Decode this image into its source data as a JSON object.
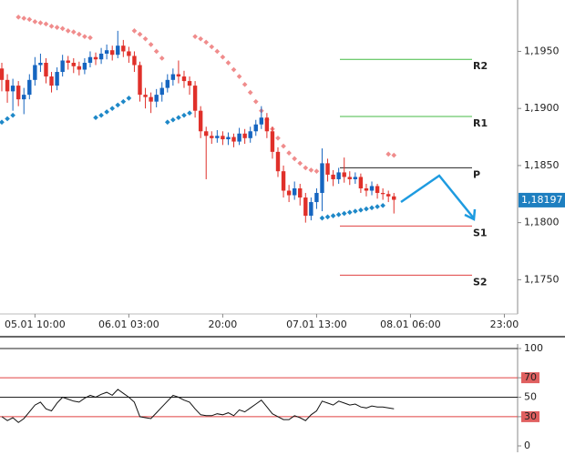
{
  "chart_data": [
    {
      "type": "candlestick",
      "categories": [
        null,
        null,
        null,
        null,
        null,
        null,
        "05.01 10:00",
        null,
        null,
        null,
        null,
        null,
        null,
        null,
        null,
        null,
        null,
        null,
        null,
        null,
        null,
        null,
        null,
        "06.01 03:00",
        null,
        null,
        null,
        null,
        null,
        null,
        null,
        null,
        null,
        null,
        null,
        null,
        null,
        null,
        null,
        null,
        "20:00",
        null,
        null,
        null,
        null,
        null,
        null,
        null,
        null,
        null,
        null,
        null,
        null,
        null,
        null,
        null,
        null,
        "07.01 13:00",
        null,
        null,
        null,
        null,
        null,
        null,
        null,
        null,
        null,
        null,
        null,
        null,
        null,
        null,
        null,
        null,
        "08.01 06:00",
        null,
        null,
        null,
        null,
        null,
        null,
        null,
        null,
        null,
        null,
        null,
        null,
        null,
        null,
        null,
        null,
        "23:00",
        null
      ],
      "open": [
        1.1935,
        1.1925,
        1.1915,
        1.192,
        1.1908,
        1.1912,
        1.1925,
        1.1938,
        1.194,
        1.1928,
        1.192,
        1.1932,
        1.1942,
        1.194,
        1.1937,
        1.1934,
        1.194,
        1.1945,
        1.1943,
        1.1948,
        1.1951,
        1.1947,
        1.1955,
        1.195,
        1.1946,
        1.1938,
        1.1912,
        1.191,
        1.1906,
        1.1912,
        1.1918,
        1.1925,
        1.193,
        1.1928,
        1.1924,
        1.192,
        1.1898,
        1.188,
        1.1876,
        1.1874,
        1.1876,
        1.1873,
        1.1875,
        1.1871,
        1.1878,
        1.1874,
        1.188,
        1.1886,
        1.1892,
        1.188,
        1.1862,
        1.1845,
        1.1828,
        1.1824,
        1.183,
        1.1822,
        1.1806,
        1.1818,
        1.1826,
        1.1852,
        1.1842,
        1.1838,
        1.1844,
        1.184,
        1.1838,
        1.184,
        1.183,
        1.1828,
        1.1832,
        1.1826,
        1.1825,
        1.1823,
        null,
        null,
        null,
        null,
        null,
        null,
        null,
        null,
        null,
        null,
        null,
        null,
        null,
        null,
        null,
        null,
        null,
        null,
        null,
        null,
        null
      ],
      "high": [
        1.194,
        1.193,
        1.1926,
        1.1924,
        1.1918,
        1.193,
        1.1945,
        1.1948,
        1.1944,
        1.1932,
        1.1936,
        1.1947,
        1.1946,
        1.1944,
        1.1941,
        1.1944,
        1.195,
        1.1949,
        1.1953,
        1.1956,
        1.1955,
        1.1968,
        1.196,
        1.1954,
        1.195,
        1.1941,
        1.1918,
        1.1914,
        1.1917,
        1.1923,
        1.193,
        1.1935,
        1.1942,
        1.1933,
        1.1928,
        1.1924,
        1.1902,
        1.1884,
        1.188,
        1.1881,
        1.188,
        1.1879,
        1.1878,
        1.1883,
        1.1882,
        1.1884,
        1.189,
        1.1902,
        1.1896,
        1.1884,
        1.1866,
        1.185,
        1.1833,
        1.1836,
        1.1834,
        1.1826,
        1.1822,
        1.183,
        1.1865,
        1.1856,
        1.1846,
        1.1848,
        1.1857,
        1.1845,
        1.1844,
        1.1843,
        1.1834,
        1.1836,
        1.1834,
        1.183,
        1.1828,
        1.1826,
        null,
        null,
        null,
        null,
        null,
        null,
        null,
        null,
        null,
        null,
        null,
        null,
        null,
        null,
        null,
        null,
        null,
        null,
        null,
        null,
        null
      ],
      "low": [
        1.1915,
        1.1905,
        1.1898,
        1.1902,
        1.1895,
        1.1908,
        1.192,
        1.1932,
        1.1922,
        1.1914,
        1.1916,
        1.1928,
        1.1934,
        1.1931,
        1.1929,
        1.193,
        1.1936,
        1.1938,
        1.1939,
        1.1943,
        1.1942,
        1.1944,
        1.1945,
        1.194,
        1.1932,
        1.1906,
        1.19,
        1.1896,
        1.1901,
        1.1906,
        1.1914,
        1.192,
        1.1922,
        1.1918,
        1.1912,
        1.1892,
        1.1874,
        1.1838,
        1.1869,
        1.187,
        1.1868,
        1.1868,
        1.1866,
        1.1868,
        1.1869,
        1.187,
        1.1876,
        1.1882,
        1.1874,
        1.1856,
        1.184,
        1.1822,
        1.1818,
        1.182,
        1.1815,
        1.18,
        1.1802,
        1.1812,
        1.181,
        1.1836,
        1.1832,
        1.1834,
        1.1835,
        1.1833,
        1.1834,
        1.1826,
        1.1823,
        1.1824,
        1.1821,
        1.182,
        1.1818,
        1.1808,
        null,
        null,
        null,
        null,
        null,
        null,
        null,
        null,
        null,
        null,
        null,
        null,
        null,
        null,
        null,
        null,
        null,
        null,
        null,
        null,
        null
      ],
      "close": [
        1.1925,
        1.1915,
        1.192,
        1.1908,
        1.1912,
        1.1925,
        1.1938,
        1.194,
        1.1928,
        1.192,
        1.1932,
        1.1942,
        1.194,
        1.1937,
        1.1934,
        1.194,
        1.1945,
        1.1943,
        1.1948,
        1.1951,
        1.1947,
        1.1955,
        1.195,
        1.1946,
        1.1938,
        1.1912,
        1.191,
        1.1906,
        1.1912,
        1.1918,
        1.1925,
        1.193,
        1.1928,
        1.1924,
        1.192,
        1.1898,
        1.188,
        1.1876,
        1.1874,
        1.1876,
        1.1873,
        1.1875,
        1.1871,
        1.1878,
        1.1874,
        1.188,
        1.1886,
        1.1892,
        1.188,
        1.1862,
        1.1845,
        1.1828,
        1.1824,
        1.183,
        1.1822,
        1.1806,
        1.1818,
        1.1826,
        1.1852,
        1.1842,
        1.1838,
        1.1844,
        1.184,
        1.1838,
        1.184,
        1.183,
        1.1828,
        1.1832,
        1.1826,
        1.1825,
        1.1823,
        1.182,
        null,
        null,
        null,
        null,
        null,
        null,
        null,
        null,
        null,
        null,
        null,
        null,
        null,
        null,
        null,
        null,
        null,
        null,
        null,
        null,
        null
      ],
      "up_color": "#1565c0",
      "down_color": "#e0302a",
      "sar": [
        {
          "color": "#f08c8c",
          "values": [
            null,
            null,
            null,
            1.198,
            1.1979,
            1.1978,
            1.1976,
            1.1975,
            1.1974,
            1.1972,
            1.1971,
            1.197,
            1.1968,
            1.1967,
            1.1965,
            1.1963,
            1.1962,
            null,
            null,
            null,
            null,
            null,
            null,
            null,
            1.1968,
            1.1965,
            1.1961,
            1.1956,
            1.195,
            1.1944,
            null,
            null,
            null,
            null,
            null,
            1.1963,
            1.1961,
            1.1958,
            1.1954,
            1.195,
            1.1945,
            1.194,
            1.1934,
            1.1928,
            1.1921,
            1.1914,
            1.1906,
            1.1898,
            1.189,
            1.1882,
            1.1874,
            1.1867,
            1.1861,
            1.1856,
            1.1852,
            1.1848,
            1.1846,
            1.1845,
            null,
            null,
            null,
            null,
            null,
            null,
            null,
            null,
            null,
            null,
            null,
            null,
            1.186,
            1.1859,
            null,
            null,
            null,
            null,
            null,
            null,
            null,
            null,
            null,
            null,
            null,
            null,
            null,
            null,
            null,
            null,
            null,
            null,
            null,
            null,
            null
          ]
        },
        {
          "color": "#1e88c8",
          "values": [
            1.1888,
            1.1891,
            1.1894,
            null,
            null,
            null,
            null,
            null,
            null,
            null,
            null,
            null,
            null,
            null,
            null,
            null,
            null,
            1.1892,
            1.1894,
            1.1897,
            1.19,
            1.1903,
            1.1906,
            1.1909,
            null,
            null,
            null,
            null,
            null,
            null,
            1.1888,
            1.189,
            1.1892,
            1.1894,
            1.1896,
            null,
            null,
            null,
            null,
            null,
            null,
            null,
            null,
            null,
            null,
            null,
            null,
            null,
            null,
            null,
            null,
            null,
            null,
            null,
            null,
            null,
            null,
            null,
            1.1804,
            1.1805,
            1.1806,
            1.1807,
            1.1808,
            1.1809,
            1.181,
            1.1811,
            1.1812,
            1.1813,
            1.1814,
            1.1815,
            null,
            null,
            null,
            null,
            null,
            null,
            null,
            null,
            null,
            null,
            null,
            null,
            null,
            null,
            null,
            null,
            null,
            null,
            null,
            null,
            null,
            null,
            null
          ]
        }
      ],
      "levels": [
        {
          "label": "R2",
          "value": 1.1943,
          "color": "#44bb44"
        },
        {
          "label": "R1",
          "value": 1.1893,
          "color": "#44bb44"
        },
        {
          "label": "P",
          "value": 1.1848,
          "color": "#222222"
        },
        {
          "label": "S1",
          "value": 1.1797,
          "color": "#e04040"
        },
        {
          "label": "S2",
          "value": 1.1754,
          "color": "#e04040"
        }
      ],
      "last_price": {
        "value": 1.18197,
        "label": "1,18197",
        "color": "#1e7fc0"
      },
      "ylim": [
        1.172,
        1.1995
      ],
      "yticks": [
        {
          "value": 1.175,
          "label": "1,1750"
        },
        {
          "value": 1.18,
          "label": "1,1800"
        },
        {
          "value": 1.185,
          "label": "1,1850"
        },
        {
          "value": 1.19,
          "label": "1,1900"
        },
        {
          "value": 1.195,
          "label": "1,1950"
        }
      ]
    },
    {
      "type": "line",
      "values": [
        30,
        26,
        29,
        24,
        28,
        35,
        42,
        45,
        38,
        36,
        44,
        50,
        48,
        46,
        45,
        49,
        52,
        50,
        53,
        55,
        52,
        58,
        54,
        50,
        45,
        30,
        29,
        28,
        34,
        40,
        46,
        52,
        50,
        47,
        45,
        38,
        32,
        31,
        31,
        33,
        32,
        34,
        31,
        37,
        35,
        39,
        43,
        47,
        40,
        33,
        30,
        27,
        27,
        31,
        29,
        26,
        32,
        36,
        46,
        44,
        42,
        46,
        44,
        42,
        43,
        40,
        39,
        41,
        40,
        40,
        39,
        38,
        null,
        null,
        null,
        null,
        null,
        null,
        null,
        null,
        null,
        null,
        null,
        null,
        null,
        null,
        null,
        null,
        null,
        null,
        null,
        null,
        null
      ],
      "color": "#111111",
      "ylim": [
        0,
        100
      ],
      "yticks": [
        0,
        30,
        50,
        70,
        100
      ],
      "tick_backgrounds": [
        null,
        "#e06060",
        null,
        "#e06060",
        null
      ],
      "grid_colors": [
        null,
        "#e04040",
        "#222222",
        "#e04040",
        "#222222"
      ]
    }
  ]
}
